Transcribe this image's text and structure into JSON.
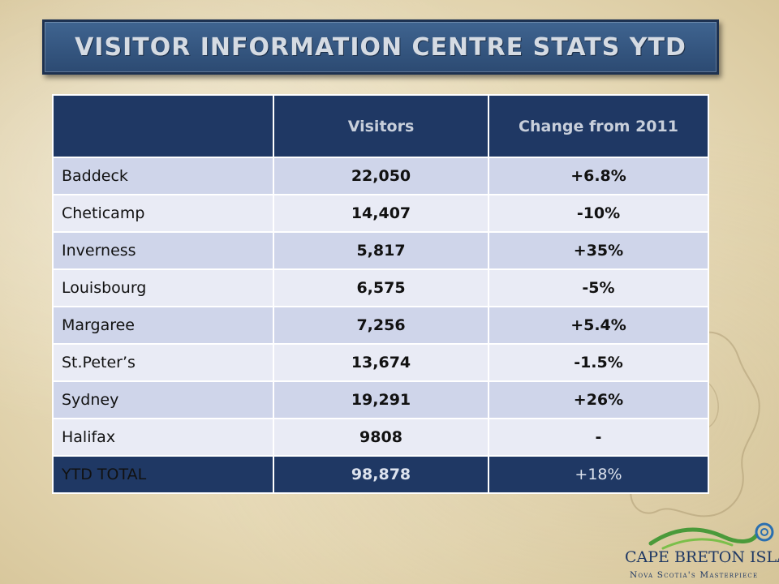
{
  "title": "VISITOR INFORMATION CENTRE STATS YTD",
  "table": {
    "headers": [
      "",
      "Visitors",
      "Change from 2011"
    ],
    "rows": [
      {
        "name": "Baddeck",
        "visitors": "22,050",
        "change": "+6.8%"
      },
      {
        "name": "Cheticamp",
        "visitors": "14,407",
        "change": "-10%"
      },
      {
        "name": "Inverness",
        "visitors": "5,817",
        "change": "+35%"
      },
      {
        "name": "Louisbourg",
        "visitors": "6,575",
        "change": "-5%"
      },
      {
        "name": "Margaree",
        "visitors": "7,256",
        "change": "+5.4%"
      },
      {
        "name": "St.Peter’s",
        "visitors": "13,674",
        "change": "-1.5%"
      },
      {
        "name": "Sydney",
        "visitors": "19,291",
        "change": "+26%"
      },
      {
        "name": "Halifax",
        "visitors": "9808",
        "change": "-"
      }
    ],
    "total": {
      "name": "YTD TOTAL",
      "visitors": "98,878",
      "change": "+18%"
    }
  },
  "logo": {
    "wordmark": "CAPE BRETON ISLAND",
    "tagline": "Nova Scotia's Masterpiece"
  },
  "colors": {
    "header_navy": "#1f3864",
    "row_dark": "#cfd5ea",
    "row_light": "#e9ebf5",
    "title_bar": "#2c4a72",
    "logo_green": "#4a9a3a",
    "logo_blue": "#2a6fb0"
  }
}
